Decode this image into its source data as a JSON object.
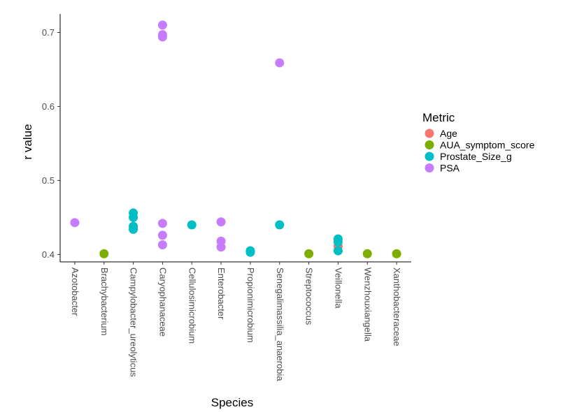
{
  "chart_data": {
    "type": "scatter",
    "xlabel": "Species",
    "ylabel": "r value",
    "categories": [
      "Azotobacter",
      "Brachybacterium",
      "Campylobacter_ureolyticus",
      "Caryophanaceae",
      "Cellulosimicrobium",
      "Enterobacter",
      "Propionimicrobium",
      "Senegalimassilia_anaerobia",
      "Streptococcus",
      "Veillonella",
      "Wenzhouxiangella",
      "Xanthobacteraceae"
    ],
    "y_ticks": [
      "0.4",
      "0.5",
      "0.6",
      "0.7"
    ],
    "ylim": [
      0.39,
      0.725
    ],
    "grid": false,
    "legend": {
      "title": "Metric",
      "position": "right"
    },
    "series": [
      {
        "name": "Age",
        "color": "#F8766D",
        "points": [
          {
            "x": "Veillonella",
            "y": 0.411
          }
        ]
      },
      {
        "name": "AUA_symptom_score",
        "color": "#7CAE00",
        "points": [
          {
            "x": "Brachybacterium",
            "y": 0.401
          },
          {
            "x": "Streptococcus",
            "y": 0.401
          },
          {
            "x": "Wenzhouxiangella",
            "y": 0.401
          },
          {
            "x": "Xanthobacteraceae",
            "y": 0.401
          }
        ]
      },
      {
        "name": "Prostate_Size_g",
        "color": "#00BFC4",
        "points": [
          {
            "x": "Campylobacter_ureolyticus",
            "y": 0.456
          },
          {
            "x": "Campylobacter_ureolyticus",
            "y": 0.45
          },
          {
            "x": "Campylobacter_ureolyticus",
            "y": 0.438
          },
          {
            "x": "Campylobacter_ureolyticus",
            "y": 0.434
          },
          {
            "x": "Cellulosimicrobium",
            "y": 0.44
          },
          {
            "x": "Propionimicrobium",
            "y": 0.405
          },
          {
            "x": "Propionimicrobium",
            "y": 0.403
          },
          {
            "x": "Senegalimassilia_anaerobia",
            "y": 0.44
          },
          {
            "x": "Veillonella",
            "y": 0.421
          },
          {
            "x": "Veillonella",
            "y": 0.417
          },
          {
            "x": "Veillonella",
            "y": 0.405
          }
        ]
      },
      {
        "name": "PSA",
        "color": "#C77CFF",
        "points": [
          {
            "x": "Azotobacter",
            "y": 0.443
          },
          {
            "x": "Caryophanaceae",
            "y": 0.71
          },
          {
            "x": "Caryophanaceae",
            "y": 0.697
          },
          {
            "x": "Caryophanaceae",
            "y": 0.694
          },
          {
            "x": "Caryophanaceae",
            "y": 0.442
          },
          {
            "x": "Caryophanaceae",
            "y": 0.426
          },
          {
            "x": "Caryophanaceae",
            "y": 0.413
          },
          {
            "x": "Enterobacter",
            "y": 0.444
          },
          {
            "x": "Enterobacter",
            "y": 0.418
          },
          {
            "x": "Enterobacter",
            "y": 0.41
          },
          {
            "x": "Senegalimassilia_anaerobia",
            "y": 0.659
          }
        ]
      }
    ]
  }
}
